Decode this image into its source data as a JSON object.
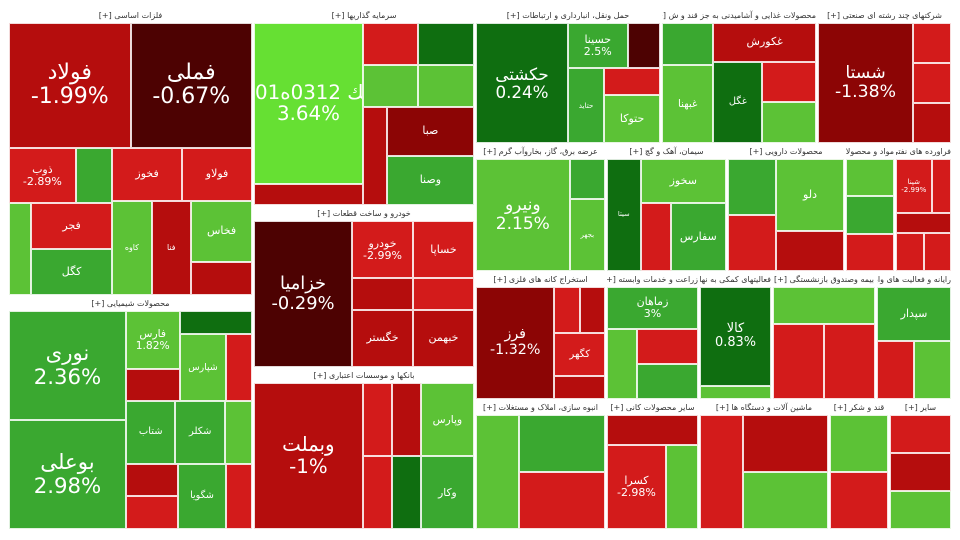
{
  "colors": {
    "strong_up": "#0f6e10",
    "up": "#3aa830",
    "mild_up": "#5cc236",
    "bright_up": "#66e033",
    "mild_down": "#d31b1b",
    "down": "#b50d0d",
    "strong_down": "#8c0505",
    "deep_down": "#4d0202",
    "header_bg": "#ffffff",
    "header_text": "#333333"
  },
  "chart_data": {
    "type": "treemap",
    "sectors": [
      {
        "name": "فلزات اساسی [+]",
        "tiles": [
          {
            "symbol": "فولاد",
            "change": "-1.99%",
            "pct": -1.99,
            "c": "down",
            "big": true
          },
          {
            "symbol": "فملی",
            "change": "-0.67%",
            "pct": -0.67,
            "c": "deep_down",
            "big": true
          },
          {
            "symbol": "ذوب",
            "change": "-2.89%",
            "pct": -2.89,
            "c": "mild_down"
          },
          {
            "symbol": "",
            "change": "",
            "c": "up"
          },
          {
            "symbol": "",
            "change": "",
            "c": "mild_up"
          },
          {
            "symbol": "فجر",
            "change": "",
            "c": "mild_down"
          },
          {
            "symbol": "کگل",
            "change": "",
            "c": "up"
          },
          {
            "symbol": "فخوز",
            "change": "",
            "c": "mild_down"
          },
          {
            "symbol": "فولاو",
            "change": "",
            "c": "mild_down"
          },
          {
            "symbol": "کاوه",
            "change": "",
            "c": "mild_up"
          },
          {
            "symbol": "فنا",
            "change": "",
            "c": "down"
          },
          {
            "symbol": "فخاس",
            "change": "",
            "c": "mild_up"
          },
          {
            "symbol": "",
            "change": "",
            "c": "down"
          }
        ]
      },
      {
        "name": "سرمایه گذاریها [+]",
        "tiles": [
          {
            "symbol": "سِك 0312ه01ب",
            "change": "3.64%",
            "pct": 3.64,
            "c": "bright_up",
            "big": true
          },
          {
            "symbol": "",
            "change": "",
            "c": "down"
          },
          {
            "symbol": "",
            "change": "",
            "c": "mild_down"
          },
          {
            "symbol": "",
            "change": "",
            "c": "mild_up"
          },
          {
            "symbol": "",
            "change": "",
            "c": "strong_up"
          },
          {
            "symbol": "",
            "change": "",
            "c": "mild_up"
          },
          {
            "symbol": "",
            "change": "",
            "c": "down"
          },
          {
            "symbol": "صبا",
            "change": "",
            "c": "strong_down"
          },
          {
            "symbol": "وصنا",
            "change": "",
            "c": "up"
          }
        ]
      },
      {
        "name": "حمل ونقل، انبارداری و ارتباطات [+]",
        "tiles": [
          {
            "symbol": "حکشتی",
            "change": "0.24%",
            "pct": 0.24,
            "c": "strong_up",
            "big": true
          },
          {
            "symbol": "حسینا",
            "change": "2.5%",
            "pct": 2.5,
            "c": "up"
          },
          {
            "symbol": "",
            "change": "",
            "c": "deep_down"
          },
          {
            "symbol": "حتاید",
            "change": "",
            "c": "up"
          },
          {
            "symbol": "",
            "change": "",
            "c": "mild_down"
          },
          {
            "symbol": "حتوکا",
            "change": "",
            "c": "mild_up"
          }
        ]
      },
      {
        "name": "محصولات غذایی و آشامیدنی به جز قند و ش [+]",
        "tiles": [
          {
            "symbol": "",
            "change": "",
            "c": "up"
          },
          {
            "symbol": "غبهنا",
            "change": "",
            "c": "mild_up"
          },
          {
            "symbol": "غکورش",
            "change": "",
            "c": "down"
          },
          {
            "symbol": "غگل",
            "change": "",
            "c": "strong_up"
          },
          {
            "symbol": "",
            "change": "",
            "c": "mild_down"
          },
          {
            "symbol": "",
            "change": "",
            "c": "mild_up"
          }
        ]
      },
      {
        "name": "شرکتهای چند رشته ای صنعتی [+]",
        "tiles": [
          {
            "symbol": "شستا",
            "change": "-1.38%",
            "pct": -1.38,
            "c": "strong_down",
            "big": true
          },
          {
            "symbol": "",
            "change": "",
            "c": "mild_down"
          },
          {
            "symbol": "",
            "change": "",
            "c": "mild_down"
          },
          {
            "symbol": "",
            "change": "",
            "c": "down"
          }
        ]
      },
      {
        "name": "خودرو و ساخت قطعات [+]",
        "tiles": [
          {
            "symbol": "خزامیا",
            "change": "-0.29%",
            "pct": -0.29,
            "c": "deep_down",
            "big": true
          },
          {
            "symbol": "خودرو",
            "change": "-2.99%",
            "pct": -2.99,
            "c": "mild_down"
          },
          {
            "symbol": "خساپا",
            "change": "",
            "c": "mild_down"
          },
          {
            "symbol": "",
            "change": "",
            "c": "down"
          },
          {
            "symbol": "خگستر",
            "change": "",
            "c": "down"
          },
          {
            "symbol": "",
            "change": "",
            "c": "mild_down"
          },
          {
            "symbol": "خبهمن",
            "change": "",
            "c": "down"
          }
        ]
      },
      {
        "name": "عرضه برق، گاز، بخاروآب گرم [+]",
        "tiles": [
          {
            "symbol": "ونیرو",
            "change": "2.15%",
            "pct": 2.15,
            "c": "mild_up",
            "big": true
          },
          {
            "symbol": "",
            "change": "",
            "c": "up"
          },
          {
            "symbol": "بجهر",
            "change": "",
            "c": "mild_up"
          }
        ]
      },
      {
        "name": "سیمان، آهک و گچ [+]",
        "tiles": [
          {
            "symbol": "سیتا",
            "change": "",
            "c": "strong_up"
          },
          {
            "symbol": "سخوز",
            "change": "",
            "c": "mild_up"
          },
          {
            "symbol": "",
            "change": "",
            "c": "mild_down"
          },
          {
            "symbol": "سفارس",
            "change": "",
            "c": "up"
          }
        ]
      },
      {
        "name": "محصولات دارویی [+]",
        "tiles": [
          {
            "symbol": "",
            "change": "",
            "c": "up"
          },
          {
            "symbol": "",
            "change": "",
            "c": "mild_down"
          },
          {
            "symbol": "دلو",
            "change": "",
            "c": "mild_up"
          },
          {
            "symbol": "",
            "change": "",
            "c": "down"
          }
        ]
      },
      {
        "name": "مواد و محصولات دارویی [+]",
        "tiles": [
          {
            "symbol": "",
            "change": "",
            "c": "mild_up"
          },
          {
            "symbol": "",
            "change": "",
            "c": "up"
          },
          {
            "symbol": "",
            "change": "",
            "c": "mild_down"
          }
        ]
      },
      {
        "name": "فراورده های نفتی، کک و س [+]",
        "tiles": [
          {
            "symbol": "شپنا",
            "change": "-2.99%",
            "pct": -2.99,
            "c": "mild_down"
          },
          {
            "symbol": "",
            "change": "",
            "c": "mild_down"
          },
          {
            "symbol": "",
            "change": "",
            "c": "down"
          },
          {
            "symbol": "",
            "change": "",
            "c": "mild_down"
          },
          {
            "symbol": "",
            "change": "",
            "c": "mild_down"
          }
        ]
      },
      {
        "name": "محصولات شیمیایی [+]",
        "tiles": [
          {
            "symbol": "نوری",
            "change": "2.36%",
            "pct": 2.36,
            "c": "up",
            "big": true
          },
          {
            "symbol": "بوعلی",
            "change": "2.98%",
            "pct": 2.98,
            "c": "up",
            "big": true
          },
          {
            "symbol": "فارس",
            "change": "1.82%",
            "pct": 1.82,
            "c": "mild_up"
          },
          {
            "symbol": "",
            "change": "",
            "c": "down"
          },
          {
            "symbol": "",
            "change": "",
            "c": "strong_up"
          },
          {
            "symbol": "شپارس",
            "change": "",
            "c": "mild_up"
          },
          {
            "symbol": "",
            "change": "",
            "c": "mild_down"
          },
          {
            "symbol": "شتاب",
            "change": "",
            "c": "up"
          },
          {
            "symbol": "شکلر",
            "change": "",
            "c": "up"
          },
          {
            "symbol": "",
            "change": "",
            "c": "mild_up"
          },
          {
            "symbol": "",
            "change": "",
            "c": "down"
          },
          {
            "symbol": "",
            "change": "",
            "c": "mild_down"
          },
          {
            "symbol": "شگویا",
            "change": "",
            "c": "up"
          },
          {
            "symbol": "",
            "change": "",
            "c": "mild_down"
          }
        ]
      },
      {
        "name": "بانکها و موسسات اعتباری [+]",
        "tiles": [
          {
            "symbol": "وبملت",
            "change": "-1%",
            "pct": -1.0,
            "c": "down",
            "big": true
          },
          {
            "symbol": "",
            "change": "",
            "c": "mild_down"
          },
          {
            "symbol": "",
            "change": "",
            "c": "down"
          },
          {
            "symbol": "وپارس",
            "change": "",
            "c": "mild_up"
          },
          {
            "symbol": "",
            "change": "",
            "c": "mild_down"
          },
          {
            "symbol": "",
            "change": "",
            "c": "strong_up"
          },
          {
            "symbol": "وکار",
            "change": "",
            "c": "up"
          }
        ]
      },
      {
        "name": "استخراج کانه های فلزی [+]",
        "tiles": [
          {
            "symbol": "فرز",
            "change": "-1.32%",
            "pct": -1.32,
            "c": "strong_down",
            "big": true
          },
          {
            "symbol": "",
            "change": "",
            "c": "mild_down"
          },
          {
            "symbol": "",
            "change": "",
            "c": "down"
          },
          {
            "symbol": "کگهر",
            "change": "",
            "c": "mild_down"
          },
          {
            "symbol": "",
            "change": "",
            "c": "down"
          }
        ]
      },
      {
        "name": "زراعت و خدمات وابسته [+]",
        "tiles": [
          {
            "symbol": "زماهان",
            "change": "3%",
            "pct": 3.0,
            "c": "up"
          },
          {
            "symbol": "",
            "change": "",
            "c": "mild_up"
          },
          {
            "symbol": "",
            "change": "",
            "c": "mild_down"
          },
          {
            "symbol": "",
            "change": "",
            "c": "up"
          }
        ]
      },
      {
        "name": "فعالیتهای کمکی به نهادها [+]",
        "tiles": [
          {
            "symbol": "کالا",
            "change": "0.83%",
            "pct": 0.83,
            "c": "strong_up",
            "big": true
          },
          {
            "symbol": "",
            "change": "",
            "c": "mild_up"
          }
        ]
      },
      {
        "name": "بیمه وصندوق بازنشستگی [+]",
        "tiles": [
          {
            "symbol": "",
            "change": "",
            "c": "mild_up"
          },
          {
            "symbol": "",
            "change": "",
            "c": "mild_down"
          },
          {
            "symbol": "",
            "change": "",
            "c": "mild_down"
          }
        ]
      },
      {
        "name": "رایانه و فعالیت های وابسته [+]",
        "tiles": [
          {
            "symbol": "سپدار",
            "change": "",
            "c": "up"
          },
          {
            "symbol": "",
            "change": "",
            "c": "mild_down"
          },
          {
            "symbol": "",
            "change": "",
            "c": "mild_up"
          }
        ]
      },
      {
        "name": "انبوه سازی، املاک و مستغلات [+]",
        "tiles": [
          {
            "symbol": "",
            "change": "",
            "c": "mild_up"
          },
          {
            "symbol": "",
            "change": "",
            "c": "up"
          },
          {
            "symbol": "",
            "change": "",
            "c": "mild_down"
          }
        ]
      },
      {
        "name": "سایر محصولات کانی [+]",
        "tiles": [
          {
            "symbol": "",
            "change": "",
            "c": "down"
          },
          {
            "symbol": "کسرا",
            "change": "-2.98%",
            "pct": -2.98,
            "c": "mild_down"
          },
          {
            "symbol": "",
            "change": "",
            "c": "mild_up"
          }
        ]
      },
      {
        "name": "ماشین آلات و دستگاه ها [+]",
        "tiles": [
          {
            "symbol": "",
            "change": "",
            "c": "mild_down"
          },
          {
            "symbol": "",
            "change": "",
            "c": "down"
          },
          {
            "symbol": "",
            "change": "",
            "c": "mild_up"
          }
        ]
      },
      {
        "name": "قند و شکر [+]",
        "tiles": [
          {
            "symbol": "",
            "change": "",
            "c": "mild_up"
          },
          {
            "symbol": "",
            "change": "",
            "c": "mild_down"
          }
        ]
      },
      {
        "name": "سایر [+]",
        "tiles": [
          {
            "symbol": "",
            "change": "",
            "c": "mild_down"
          },
          {
            "symbol": "",
            "change": "",
            "c": "down"
          },
          {
            "symbol": "",
            "change": "",
            "c": "mild_up"
          }
        ]
      }
    ]
  }
}
